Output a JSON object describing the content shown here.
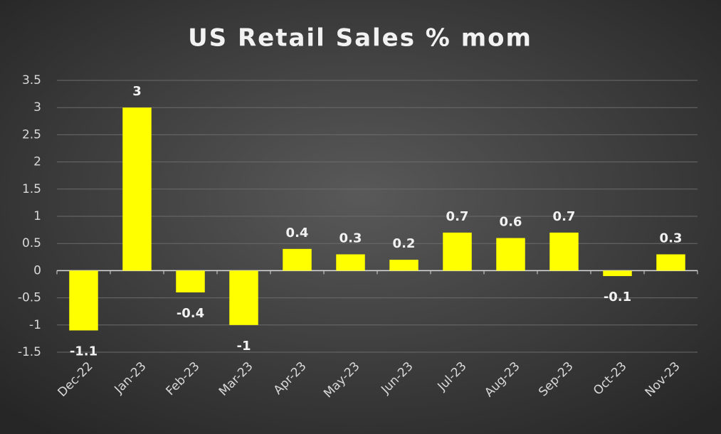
{
  "chart_data": {
    "type": "bar",
    "title": "US Retail Sales % mom",
    "categories": [
      "Dec-22",
      "Jan-23",
      "Feb-23",
      "Mar-23",
      "Apr-23",
      "May-23",
      "Jun-23",
      "Jul-23",
      "Aug-23",
      "Sep-23",
      "Oct-23",
      "Nov-23"
    ],
    "values": [
      -1.1,
      3,
      -0.4,
      -1,
      0.4,
      0.3,
      0.2,
      0.7,
      0.6,
      0.7,
      -0.1,
      0.3
    ],
    "color": "#ffff00",
    "ylim": [
      -1.5,
      3.5
    ],
    "yticks": [
      -1.5,
      -1,
      -0.5,
      0,
      0.5,
      1,
      1.5,
      2,
      2.5,
      3,
      3.5
    ],
    "grid": true
  }
}
